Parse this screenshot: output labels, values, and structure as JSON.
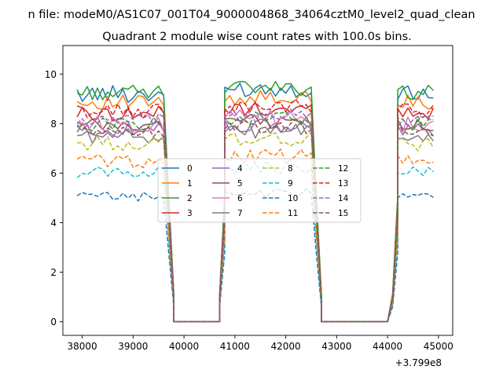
{
  "suptitle": "n file: modeM0/AS1C07_001T04_9000004868_34064cztM0_level2_quad_clean",
  "chart_data": {
    "type": "line",
    "title": "Quadrant 2 module wise count rates with 100.0s bins.",
    "xlabel": "",
    "ylabel": "",
    "x_offset_label": "+3.799e8",
    "xlim": [
      37620,
      45280
    ],
    "ylim": [
      -0.55,
      11.15
    ],
    "xticks": [
      38000,
      39000,
      40000,
      41000,
      42000,
      43000,
      44000,
      45000
    ],
    "yticks": [
      0,
      2,
      4,
      6,
      8,
      10
    ],
    "grid": false,
    "legend": {
      "location": "center",
      "ncol": 4
    },
    "segments": [
      {
        "start": 37900,
        "n": 18
      },
      {
        "start": 39700,
        "n": 2
      },
      {
        "start": 39800,
        "n": 10,
        "zero": true
      },
      {
        "start": 40700,
        "n": 2
      },
      {
        "start": 40800,
        "n": 18
      },
      {
        "start": 42600,
        "n": 2
      },
      {
        "start": 42700,
        "n": 14,
        "zero": true
      },
      {
        "start": 44100,
        "n": 2
      },
      {
        "start": 44200,
        "n": 8
      }
    ],
    "series": [
      {
        "name": "0",
        "color": "#1f77b4",
        "style": "solid",
        "base": 9.2,
        "amp": 0.35
      },
      {
        "name": "1",
        "color": "#ff7f0e",
        "style": "solid",
        "base": 8.85,
        "amp": 0.3
      },
      {
        "name": "2",
        "color": "#2ca02c",
        "style": "solid",
        "base": 9.25,
        "amp": 0.3
      },
      {
        "name": "3",
        "color": "#d62728",
        "style": "solid",
        "base": 8.4,
        "amp": 0.3
      },
      {
        "name": "4",
        "color": "#9467bd",
        "style": "solid",
        "base": 7.7,
        "amp": 0.3
      },
      {
        "name": "5",
        "color": "#8c564b",
        "style": "solid",
        "base": 7.9,
        "amp": 0.3
      },
      {
        "name": "6",
        "color": "#e377c2",
        "style": "solid",
        "base": 8.0,
        "amp": 0.35
      },
      {
        "name": "7",
        "color": "#7f7f7f",
        "style": "solid",
        "base": 7.5,
        "amp": 0.3
      },
      {
        "name": "8",
        "color": "#bcbd22",
        "style": "dashed",
        "base": 7.2,
        "amp": 0.3
      },
      {
        "name": "9",
        "color": "#17becf",
        "style": "dashed",
        "base": 6.05,
        "amp": 0.25
      },
      {
        "name": "10",
        "color": "#1f77b4",
        "style": "dashed",
        "base": 5.05,
        "amp": 0.2
      },
      {
        "name": "11",
        "color": "#ff7f0e",
        "style": "dashed",
        "base": 6.5,
        "amp": 0.3
      },
      {
        "name": "12",
        "color": "#2ca02c",
        "style": "dashed",
        "base": 8.0,
        "amp": 0.3
      },
      {
        "name": "13",
        "color": "#d62728",
        "style": "dashed",
        "base": 8.5,
        "amp": 0.3
      },
      {
        "name": "14",
        "color": "#9467bd",
        "style": "dashed",
        "base": 8.1,
        "amp": 0.3
      },
      {
        "name": "15",
        "color": "#8c564b",
        "style": "dashed",
        "base": 7.7,
        "amp": 0.3
      }
    ]
  }
}
